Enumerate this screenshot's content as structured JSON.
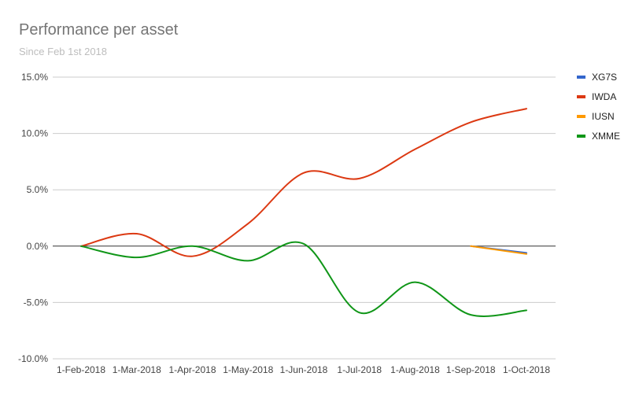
{
  "chart_data": {
    "type": "line",
    "title": "Performance per asset",
    "subtitle": "Since Feb 1st 2018",
    "xlabel": "",
    "ylabel": "",
    "categories": [
      "1-Feb-2018",
      "1-Mar-2018",
      "1-Apr-2018",
      "1-May-2018",
      "1-Jun-2018",
      "1-Jul-2018",
      "1-Aug-2018",
      "1-Sep-2018",
      "1-Oct-2018"
    ],
    "y_ticks": [
      "15.0%",
      "10.0%",
      "5.0%",
      "0.0%",
      "-5.0%",
      "-10.0%"
    ],
    "ylim": [
      -10,
      15
    ],
    "grid": true,
    "legend_position": "right",
    "series": [
      {
        "name": "XG7S",
        "color": "#3366cc",
        "values": [
          null,
          null,
          null,
          null,
          null,
          null,
          null,
          0.0,
          -0.6
        ]
      },
      {
        "name": "IWDA",
        "color": "#dc3912",
        "values": [
          0.0,
          1.1,
          -0.9,
          2.0,
          6.5,
          6.0,
          8.6,
          11.0,
          12.2
        ]
      },
      {
        "name": "IUSN",
        "color": "#ff9900",
        "values": [
          null,
          null,
          null,
          null,
          null,
          null,
          null,
          0.0,
          -0.7
        ]
      },
      {
        "name": "XMME",
        "color": "#109618",
        "values": [
          0.0,
          -1.0,
          0.0,
          -1.3,
          0.2,
          -5.9,
          -3.2,
          -6.1,
          -5.7
        ]
      }
    ]
  }
}
